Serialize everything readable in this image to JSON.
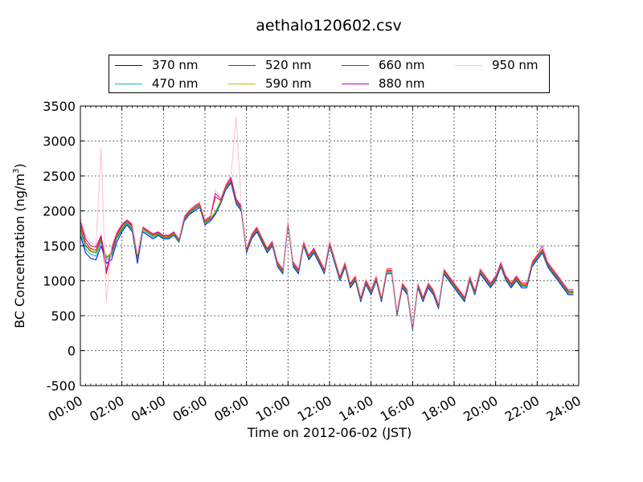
{
  "chart_data": {
    "type": "line",
    "title": "aethalo120602.csv",
    "xlabel": "Time on 2012-06-02 (JST)",
    "ylabel": "BC Concentration (ng/m",
    "ylabel_sup": "3",
    "ylabel_tail": ")",
    "xlim": [
      0,
      24
    ],
    "ylim": [
      -500,
      3500
    ],
    "xticks": [
      0,
      2,
      4,
      6,
      8,
      10,
      12,
      14,
      16,
      18,
      20,
      22,
      24
    ],
    "xtick_labels": [
      "00:00",
      "02:00",
      "04:00",
      "06:00",
      "08:00",
      "10:00",
      "12:00",
      "14:00",
      "16:00",
      "18:00",
      "20:00",
      "22:00",
      "24:00"
    ],
    "yticks": [
      -500,
      0,
      500,
      1000,
      1500,
      2000,
      2500,
      3000,
      3500
    ],
    "ytick_labels": [
      "-500",
      "0",
      "500",
      "1000",
      "1500",
      "2000",
      "2500",
      "3000",
      "3500"
    ],
    "grid": true,
    "legend_position": "top-center, above plot",
    "x": [
      0,
      0.25,
      0.5,
      0.75,
      1,
      1.25,
      1.5,
      1.75,
      2,
      2.25,
      2.5,
      2.75,
      3,
      3.25,
      3.5,
      3.75,
      4,
      4.25,
      4.5,
      4.75,
      5,
      5.25,
      5.5,
      5.75,
      6,
      6.25,
      6.5,
      6.75,
      7,
      7.25,
      7.5,
      7.75,
      8,
      8.25,
      8.5,
      8.75,
      9,
      9.25,
      9.5,
      9.75,
      10,
      10.25,
      10.5,
      10.75,
      11,
      11.25,
      11.5,
      11.75,
      12,
      12.25,
      12.5,
      12.75,
      13,
      13.25,
      13.5,
      13.75,
      14,
      14.25,
      14.5,
      14.75,
      15,
      15.25,
      15.5,
      15.75,
      16,
      16.25,
      16.5,
      16.75,
      17,
      17.25,
      17.5,
      17.75,
      18,
      18.25,
      18.5,
      18.75,
      19,
      19.25,
      19.5,
      19.75,
      20,
      20.25,
      20.5,
      20.75,
      21,
      21.25,
      21.5,
      21.75,
      22,
      22.25,
      22.5,
      22.75,
      23,
      23.25,
      23.5,
      23.75
    ],
    "series": [
      {
        "name": "370 nm",
        "color": "#0000ff",
        "values": [
          1650,
          1400,
          1320,
          1300,
          1500,
          1250,
          1300,
          1550,
          1700,
          1800,
          1700,
          1250,
          1700,
          1650,
          1600,
          1650,
          1600,
          1600,
          1650,
          1550,
          1850,
          1950,
          2000,
          2050,
          1800,
          1850,
          1950,
          2100,
          2300,
          2400,
          2100,
          2000,
          1400,
          1600,
          1700,
          1550,
          1400,
          1500,
          1200,
          1100,
          1800,
          1200,
          1100,
          1500,
          1300,
          1400,
          1250,
          1100,
          1500,
          1250,
          1000,
          1200,
          900,
          1000,
          700,
          950,
          800,
          1000,
          700,
          1100,
          1100,
          500,
          900,
          800,
          300,
          900,
          700,
          900,
          800,
          600,
          1100,
          1000,
          900,
          800,
          700,
          1000,
          800,
          1100,
          1000,
          900,
          1000,
          1200,
          1000,
          900,
          1000,
          900,
          900,
          1200,
          1300,
          1400,
          1200,
          1100,
          1000,
          900,
          800,
          800
        ]
      },
      {
        "name": "470 nm",
        "color": "#00bfbf",
        "values": [
          1700,
          1450,
          1380,
          1350,
          1550,
          1300,
          1350,
          1600,
          1720,
          1820,
          1720,
          1300,
          1720,
          1670,
          1620,
          1660,
          1610,
          1610,
          1660,
          1560,
          1870,
          1960,
          2020,
          2070,
          1820,
          1870,
          1970,
          2120,
          2320,
          2420,
          2120,
          2020,
          1420,
          1620,
          1720,
          1570,
          1420,
          1520,
          1220,
          1120,
          1820,
          1220,
          1120,
          1520,
          1320,
          1420,
          1270,
          1120,
          1520,
          1270,
          1020,
          1220,
          920,
          1020,
          720,
          970,
          820,
          1020,
          720,
          1120,
          1120,
          520,
          920,
          820,
          320,
          920,
          720,
          920,
          820,
          620,
          1120,
          1020,
          920,
          820,
          720,
          1020,
          820,
          1120,
          1020,
          920,
          1020,
          1220,
          1020,
          920,
          1020,
          920,
          920,
          1220,
          1320,
          1420,
          1220,
          1120,
          1020,
          920,
          820,
          820
        ]
      },
      {
        "name": "520 nm",
        "color": "#008000",
        "values": [
          1750,
          1500,
          1420,
          1400,
          1580,
          1330,
          1380,
          1620,
          1740,
          1840,
          1740,
          1320,
          1740,
          1690,
          1640,
          1670,
          1620,
          1620,
          1670,
          1570,
          1880,
          1970,
          2030,
          2080,
          1830,
          1880,
          1980,
          2130,
          2330,
          2430,
          2130,
          2030,
          1430,
          1630,
          1730,
          1580,
          1430,
          1530,
          1230,
          1130,
          1830,
          1230,
          1130,
          1530,
          1330,
          1430,
          1280,
          1130,
          1530,
          1280,
          1030,
          1230,
          930,
          1030,
          730,
          980,
          830,
          1030,
          730,
          1130,
          1130,
          530,
          930,
          830,
          330,
          930,
          730,
          930,
          830,
          630,
          1130,
          1030,
          930,
          830,
          730,
          1030,
          830,
          1130,
          1030,
          930,
          1030,
          1230,
          1030,
          930,
          1030,
          930,
          930,
          1230,
          1330,
          1430,
          1230,
          1130,
          1030,
          930,
          830,
          830
        ]
      },
      {
        "name": "590 nm",
        "color": "#bfbf00",
        "values": [
          1780,
          1520,
          1440,
          1420,
          1600,
          1350,
          1400,
          1640,
          1760,
          1850,
          1760,
          1340,
          1750,
          1700,
          1650,
          1680,
          1630,
          1630,
          1680,
          1580,
          1890,
          1980,
          2040,
          2090,
          1840,
          1890,
          1990,
          2140,
          2340,
          2440,
          2140,
          2040,
          1440,
          1640,
          1740,
          1590,
          1440,
          1540,
          1240,
          1140,
          1840,
          1240,
          1140,
          1540,
          1340,
          1440,
          1290,
          1140,
          1540,
          1290,
          1040,
          1240,
          940,
          1040,
          740,
          990,
          840,
          1040,
          740,
          1140,
          1140,
          540,
          940,
          840,
          340,
          940,
          740,
          940,
          840,
          640,
          1140,
          1040,
          940,
          840,
          740,
          1040,
          840,
          1140,
          1040,
          940,
          1040,
          1240,
          1040,
          940,
          1040,
          940,
          940,
          1240,
          1340,
          1440,
          1240,
          1140,
          1040,
          940,
          840,
          840
        ]
      },
      {
        "name": "660 nm",
        "color": "#ff0000",
        "values": [
          1800,
          1550,
          1460,
          1440,
          1620,
          1100,
          1420,
          1660,
          1780,
          1860,
          1780,
          1350,
          1760,
          1710,
          1660,
          1690,
          1640,
          1640,
          1690,
          1590,
          1900,
          1990,
          2050,
          2100,
          1850,
          1900,
          2200,
          2150,
          2350,
          2450,
          2150,
          2050,
          1450,
          1650,
          1750,
          1600,
          1450,
          1550,
          1250,
          1150,
          1850,
          1250,
          1150,
          1550,
          1350,
          1450,
          1300,
          1150,
          1550,
          1300,
          1050,
          1250,
          950,
          1050,
          750,
          1000,
          850,
          1050,
          750,
          1150,
          1150,
          550,
          950,
          850,
          350,
          950,
          750,
          950,
          850,
          650,
          1150,
          1050,
          950,
          850,
          750,
          1050,
          850,
          1150,
          1050,
          950,
          1050,
          1250,
          1050,
          950,
          1050,
          950,
          950,
          1250,
          1350,
          1450,
          1250,
          1150,
          1050,
          950,
          850,
          850
        ]
      },
      {
        "name": "880 nm",
        "color": "#bf00bf",
        "values": [
          1850,
          1600,
          1500,
          1480,
          1650,
          1150,
          1450,
          1680,
          1800,
          1870,
          1800,
          1370,
          1770,
          1720,
          1670,
          1700,
          1650,
          1650,
          1700,
          1600,
          1920,
          2010,
          2070,
          2120,
          1870,
          1920,
          2250,
          2170,
          2370,
          2480,
          2170,
          2070,
          1470,
          1670,
          1770,
          1620,
          1470,
          1570,
          1270,
          1170,
          1870,
          1270,
          1170,
          1570,
          1370,
          1470,
          1320,
          1170,
          1570,
          1320,
          1070,
          1270,
          970,
          1070,
          770,
          1020,
          870,
          1070,
          770,
          1170,
          1170,
          570,
          970,
          870,
          370,
          970,
          770,
          970,
          870,
          670,
          1170,
          1070,
          970,
          870,
          770,
          1070,
          870,
          1170,
          1070,
          970,
          1070,
          1270,
          1070,
          970,
          1070,
          970,
          970,
          1270,
          1370,
          1500,
          1270,
          1170,
          1070,
          970,
          870,
          870
        ]
      },
      {
        "name": "950 nm",
        "color": "#ffc0cb",
        "values": [
          1900,
          1650,
          1550,
          1500,
          2900,
          700,
          1500,
          1700,
          1820,
          1880,
          1820,
          1380,
          1780,
          1730,
          1680,
          1710,
          1660,
          1660,
          1710,
          1610,
          1930,
          2020,
          2080,
          2130,
          1880,
          1930,
          2300,
          2180,
          2380,
          2500,
          3350,
          2080,
          1480,
          1680,
          1780,
          1630,
          1480,
          1580,
          1280,
          1180,
          1880,
          1280,
          1180,
          1580,
          1380,
          1480,
          1330,
          1180,
          1580,
          1330,
          1080,
          1280,
          980,
          1080,
          780,
          1030,
          880,
          1080,
          780,
          1180,
          1180,
          580,
          980,
          880,
          380,
          980,
          780,
          980,
          880,
          680,
          1180,
          1080,
          980,
          880,
          780,
          1080,
          880,
          1180,
          1080,
          980,
          1080,
          1280,
          1080,
          980,
          1080,
          980,
          980,
          1280,
          1380,
          1520,
          1280,
          1180,
          1080,
          980,
          880,
          880
        ]
      }
    ]
  }
}
